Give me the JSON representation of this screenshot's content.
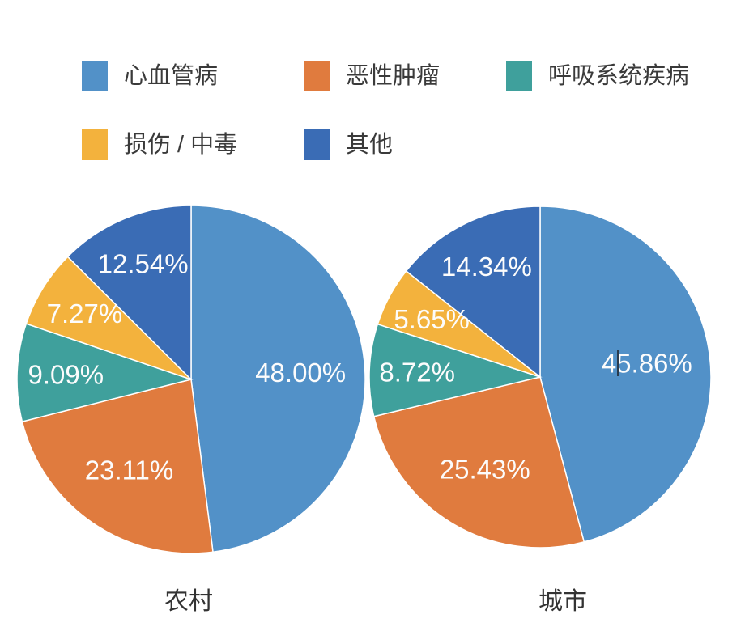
{
  "chart_data": {
    "type": "pie",
    "title": "",
    "categories": [
      "心血管病",
      "恶性肿瘤",
      "呼吸系统疾病",
      "损伤 / 中毒",
      "其他"
    ],
    "colors": [
      "#5291C8",
      "#E07B3E",
      "#3FA09C",
      "#F3B23D",
      "#3A6CB5"
    ],
    "pies": [
      {
        "name": "农村",
        "values": [
          48.0,
          23.11,
          9.09,
          7.27,
          12.54
        ],
        "labels": [
          "48.00%",
          "23.11%",
          "9.09%",
          "7.27%",
          "12.54%"
        ]
      },
      {
        "name": "城市",
        "values": [
          45.86,
          25.43,
          8.72,
          5.65,
          14.34
        ],
        "labels": [
          "45.86%",
          "25.43%",
          "8.72%",
          "5.65%",
          "14.34%"
        ]
      }
    ],
    "legend_position": "top-left, two rows",
    "label_position": "inside",
    "label_color": "#ffffff",
    "start_angle": "top (12 o'clock)",
    "direction": "clockwise",
    "grid": "off"
  },
  "artifacts": {
    "text_caret": "dark text cursor visible between '4' and '5' of the 45.86% label"
  }
}
